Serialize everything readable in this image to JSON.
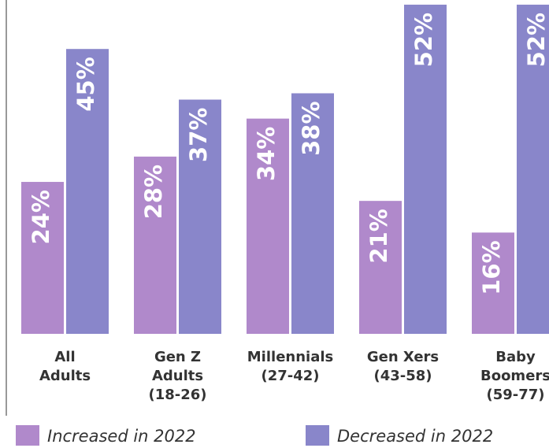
{
  "chart_data": {
    "type": "bar",
    "categories": [
      [
        "All",
        "Adults"
      ],
      [
        "Gen Z",
        "Adults",
        "(18-26)"
      ],
      [
        "Millennials",
        "(27-42)"
      ],
      [
        "Gen Xers",
        "(43-58)"
      ],
      [
        "Baby",
        "Boomers",
        "(59-77)"
      ]
    ],
    "series": [
      {
        "name": "Increased in 2022",
        "color": "#b089cb",
        "values": [
          24,
          28,
          34,
          21,
          16
        ],
        "value_labels": [
          "24%",
          "28%",
          "34%",
          "21%",
          "16%"
        ]
      },
      {
        "name": "Decreased in 2022",
        "color": "#8986ca",
        "values": [
          45,
          37,
          38,
          52,
          52
        ],
        "value_labels": [
          "45%",
          "37%",
          "38%",
          "52%",
          "52%"
        ]
      }
    ],
    "ylim": [
      0,
      53
    ]
  }
}
